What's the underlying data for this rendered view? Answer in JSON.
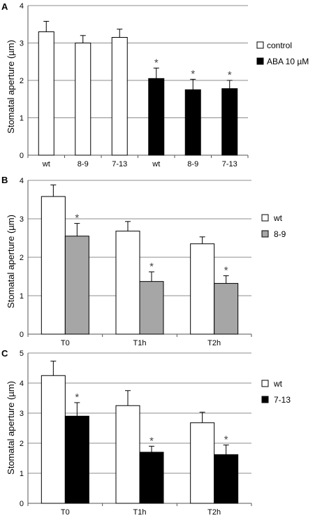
{
  "chart_data": [
    {
      "type": "bar",
      "panel_label": "A",
      "categories": [
        "wt",
        "8-9",
        "7-13",
        "wt",
        "8-9",
        "7-13"
      ],
      "series": [
        {
          "name": "control",
          "color": "#ffffff",
          "values": [
            3.3,
            3.0,
            3.15,
            null,
            null,
            null
          ],
          "errors": [
            0.28,
            0.2,
            0.22,
            null,
            null,
            null
          ],
          "significant": [
            false,
            false,
            false,
            false,
            false,
            false
          ]
        },
        {
          "name": "ABA 10 µM",
          "color": "#000000",
          "values": [
            null,
            null,
            null,
            2.05,
            1.75,
            1.78
          ],
          "errors": [
            null,
            null,
            null,
            0.28,
            0.28,
            0.22
          ],
          "significant": [
            false,
            false,
            false,
            true,
            true,
            true
          ]
        }
      ],
      "ylabel": "Stomatal  aperture (µm)",
      "ylim": [
        0,
        4
      ],
      "yticks": [
        0,
        1,
        2,
        3,
        4
      ],
      "grid": true,
      "legend": "right",
      "significance_marker": "*"
    },
    {
      "type": "bar",
      "panel_label": "B",
      "categories": [
        "T0",
        "T1h",
        "T2h"
      ],
      "series": [
        {
          "name": "wt",
          "color": "#ffffff",
          "values": [
            3.58,
            2.68,
            2.35
          ],
          "errors": [
            0.3,
            0.25,
            0.18
          ],
          "significant": [
            false,
            false,
            false
          ]
        },
        {
          "name": "8-9",
          "color": "#a6a6a6",
          "values": [
            2.55,
            1.37,
            1.32
          ],
          "errors": [
            0.33,
            0.25,
            0.2
          ],
          "significant": [
            true,
            true,
            true
          ]
        }
      ],
      "ylabel": "Stomatal  aperture (µm)",
      "ylim": [
        0,
        4
      ],
      "yticks": [
        0,
        1,
        2,
        3,
        4
      ],
      "grid": true,
      "legend": "right",
      "significance_marker": "*"
    },
    {
      "type": "bar",
      "panel_label": "C",
      "categories": [
        "T0",
        "T1h",
        "T2h"
      ],
      "series": [
        {
          "name": "wt",
          "color": "#ffffff",
          "values": [
            4.25,
            3.25,
            2.68
          ],
          "errors": [
            0.48,
            0.5,
            0.35
          ],
          "significant": [
            false,
            false,
            false
          ]
        },
        {
          "name": "7-13",
          "color": "#000000",
          "values": [
            2.9,
            1.7,
            1.62
          ],
          "errors": [
            0.45,
            0.2,
            0.32
          ],
          "significant": [
            true,
            true,
            true
          ]
        }
      ],
      "ylabel": "Stomatal  aperture (µm)",
      "ylim": [
        0,
        5
      ],
      "yticks": [
        0,
        1,
        2,
        3,
        4,
        5
      ],
      "grid": true,
      "legend": "right",
      "significance_marker": "*"
    }
  ]
}
